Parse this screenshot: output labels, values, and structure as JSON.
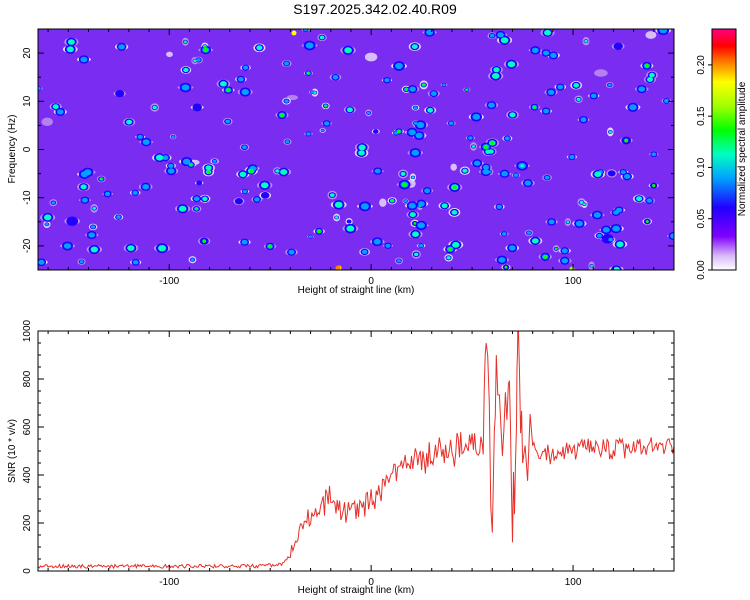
{
  "title": "S197.2025.342.02.40.R09",
  "chart_data": [
    {
      "type": "heatmap",
      "xlabel": "Height of straight line (km)",
      "ylabel": "Frequency (Hz)",
      "xlim": [
        -165,
        150
      ],
      "ylim": [
        -25,
        25
      ],
      "x_ticks": [
        -100,
        0,
        100
      ],
      "x_tick_labels": [
        "-100",
        "0",
        "100"
      ],
      "y_ticks": [
        -20,
        -10,
        0,
        10,
        20
      ],
      "y_tick_labels": [
        "-20",
        "-10",
        "0",
        "10",
        "20"
      ],
      "colorbar": {
        "label": "Normalized spectral amplitude",
        "range": [
          0.0,
          0.235
        ],
        "ticks": [
          0.0,
          0.05,
          0.1,
          0.15,
          0.2
        ],
        "tick_labels": [
          "0.00",
          "0.05",
          "0.10",
          "0.15",
          "0.20"
        ],
        "colormap": [
          "#ffffff",
          "#c8a0f0",
          "#8000ff",
          "#2000ff",
          "#00a0ff",
          "#00ffc0",
          "#00ff00",
          "#a0ff00",
          "#ffff00",
          "#ff8000",
          "#ff0000",
          "#ff0080"
        ]
      },
      "description_values": "random noise field, mostly 0.02-0.07, sparse hotspots up to ~0.2"
    },
    {
      "type": "line",
      "xlabel": "Height of straight line (km)",
      "ylabel": "SNR (10 * v/v)",
      "xlim": [
        -165,
        150
      ],
      "ylim": [
        0,
        1000
      ],
      "x_ticks": [
        -100,
        0,
        100
      ],
      "x_tick_labels": [
        "-100",
        "0",
        "100"
      ],
      "y_ticks": [
        0,
        200,
        400,
        600,
        800,
        1000
      ],
      "y_tick_labels": [
        "0",
        "200",
        "400",
        "600",
        "800",
        "1000"
      ],
      "series": [
        {
          "color": "#e8302a",
          "x": [
            -165,
            -140,
            -120,
            -100,
            -80,
            -60,
            -45,
            -40,
            -35,
            -30,
            -25,
            -20,
            -18,
            -15,
            -10,
            -5,
            0,
            5,
            10,
            15,
            20,
            25,
            30,
            35,
            40,
            45,
            50,
            55,
            57,
            60,
            62,
            65,
            68,
            70,
            72,
            73,
            75,
            80,
            85,
            90,
            100,
            110,
            120,
            130,
            140,
            150
          ],
          "y": [
            20,
            20,
            20,
            20,
            20,
            20,
            25,
            60,
            170,
            230,
            260,
            320,
            250,
            260,
            240,
            260,
            290,
            330,
            380,
            420,
            440,
            470,
            480,
            490,
            500,
            510,
            520,
            530,
            950,
            160,
            900,
            480,
            780,
            120,
            600,
            1000,
            450,
            500,
            480,
            490,
            500,
            510,
            505,
            510,
            515,
            520
          ]
        }
      ]
    }
  ]
}
